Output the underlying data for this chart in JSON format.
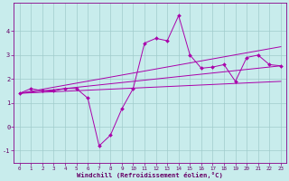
{
  "title": "",
  "xlabel": "Windchill (Refroidissement éolien,°C)",
  "ylabel": "",
  "xlim": [
    -0.5,
    23.5
  ],
  "ylim": [
    -1.5,
    5.2
  ],
  "xticks": [
    0,
    1,
    2,
    3,
    4,
    5,
    6,
    7,
    8,
    9,
    10,
    11,
    12,
    13,
    14,
    15,
    16,
    17,
    18,
    19,
    20,
    21,
    22,
    23
  ],
  "yticks": [
    -1,
    0,
    1,
    2,
    3,
    4
  ],
  "background_color": "#c8ecec",
  "grid_color": "#a0cccc",
  "line_color": "#aa00aa",
  "figsize": [
    3.2,
    2.0
  ],
  "dpi": 100,
  "series": {
    "line1_x": [
      0,
      1,
      2,
      3,
      4,
      5,
      6,
      7,
      8,
      9,
      10,
      11,
      12,
      13,
      14,
      15,
      16,
      17,
      18,
      19,
      20,
      21,
      22,
      23
    ],
    "line1_y": [
      1.4,
      1.6,
      1.5,
      1.5,
      1.6,
      1.6,
      1.2,
      -0.8,
      -0.35,
      0.75,
      1.6,
      3.5,
      3.7,
      3.6,
      4.65,
      3.0,
      2.45,
      2.5,
      2.6,
      1.9,
      2.9,
      3.0,
      2.6,
      2.55
    ],
    "line2_x": [
      0,
      23
    ],
    "line2_y": [
      1.4,
      2.55
    ],
    "line3_x": [
      0,
      23
    ],
    "line3_y": [
      1.4,
      3.35
    ],
    "line4_x": [
      0,
      23
    ],
    "line4_y": [
      1.4,
      1.9
    ]
  }
}
